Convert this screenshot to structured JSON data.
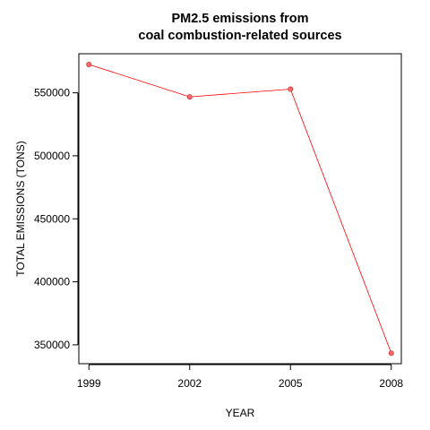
{
  "chart_data": {
    "type": "line",
    "title_lines": [
      "PM2.5 emissions from",
      "coal combustion-related sources"
    ],
    "xlabel": "YEAR",
    "ylabel": "TOTAL EMISSIONS (TONS)",
    "x": [
      1999,
      2002,
      2005,
      2008
    ],
    "x_tick_labels": [
      "1999",
      "2002",
      "2005",
      "2008"
    ],
    "series": [
      {
        "values": [
          572500,
          546800,
          552900,
          343400
        ],
        "color": "#ff0000",
        "marker": "circle"
      }
    ],
    "y_ticks": [
      350000,
      400000,
      450000,
      500000,
      550000
    ],
    "y_tick_labels": [
      "350000",
      "400000",
      "450000",
      "500000",
      "550000"
    ],
    "xlim": [
      1998.7,
      2008.3
    ],
    "ylim": [
      335000,
      581000
    ],
    "grid": false,
    "legend": "none"
  }
}
